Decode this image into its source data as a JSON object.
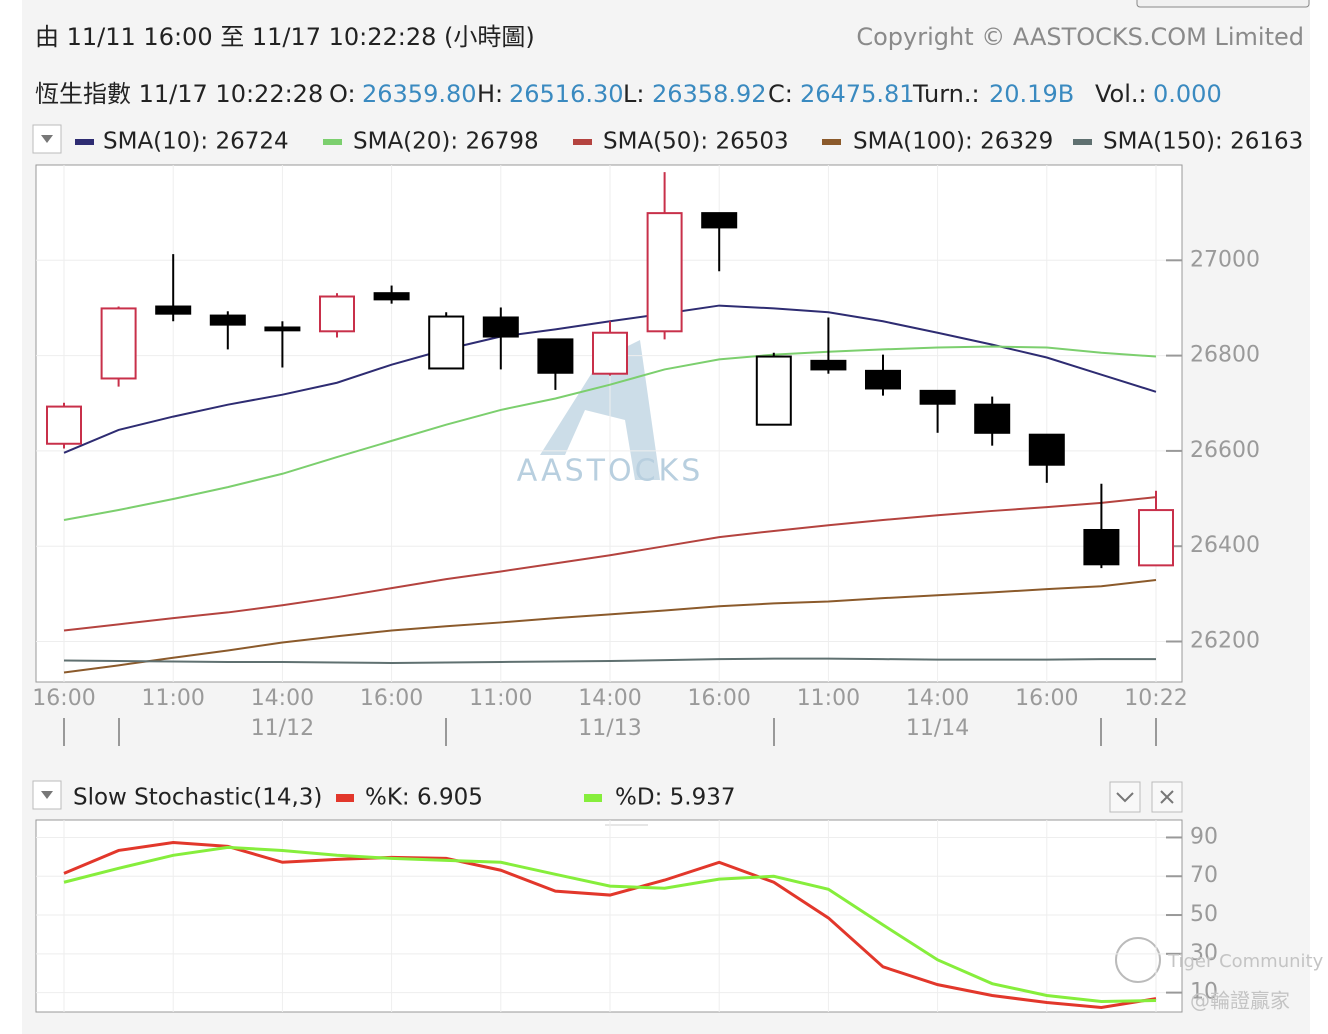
{
  "header": {
    "range": "由  11/11 16:00 至  11/17 10:22:28 (小時圖)",
    "copyright": "Copyright © AASTOCKS.COM Limited",
    "symbol": "恆生指數 11/17 10:22:28",
    "quote": [
      {
        "label": "O:",
        "value": "26359.80"
      },
      {
        "label": "H:",
        "value": "26516.30"
      },
      {
        "label": "L:",
        "value": "26358.92"
      },
      {
        "label": "C:",
        "value": "26475.81"
      },
      {
        "label": "Turn.:",
        "value": "20.19B"
      },
      {
        "label": "Vol.:",
        "value": "0.000"
      }
    ]
  },
  "chart_data": [
    {
      "type": "candlestick",
      "categories": [
        "16:00",
        null,
        "11:00",
        null,
        "14:00",
        null,
        "16:00",
        null,
        "11:00",
        null,
        "14:00",
        null,
        "16:00",
        null,
        "11:00",
        null,
        "14:00",
        null,
        "16:00",
        null,
        "10:22"
      ],
      "date_labels": [
        null,
        null,
        null,
        null,
        "11/12",
        null,
        null,
        null,
        null,
        null,
        "11/13",
        null,
        null,
        null,
        null,
        null,
        "11/14",
        null,
        null,
        null,
        null
      ],
      "open": [
        26615,
        26752,
        26903,
        26884,
        26859,
        26851,
        26931,
        26773,
        26880,
        26834,
        26762,
        26851,
        27099,
        26655,
        26789,
        26768,
        26726,
        26697,
        26634,
        26434,
        26359.8
      ],
      "high": [
        26701,
        26903,
        27013,
        26893,
        26872,
        26931,
        26947,
        26891,
        26901,
        26834,
        26872,
        27185,
        27099,
        26806,
        26880,
        26802,
        26726,
        26714,
        26634,
        26531,
        26516.3
      ],
      "low": [
        26605,
        26735,
        26872,
        26813,
        26775,
        26838,
        26909,
        26773,
        26771,
        26728,
        26758,
        26834,
        26977,
        26655,
        26762,
        26716,
        26638,
        26611,
        26533,
        26354,
        26358.92
      ],
      "close": [
        26693,
        26899,
        26888,
        26865,
        26853,
        26924,
        26918,
        26882,
        26840,
        26764,
        26848,
        27099,
        27069,
        26798,
        26771,
        26731,
        26699,
        26638,
        26571,
        26362,
        26475.81
      ],
      "up_color": "#c8304a",
      "down_color": "#000000",
      "series": [
        {
          "name": "SMA(10): 26724",
          "color": "#2e2c72",
          "values": [
            26596,
            26644,
            26672,
            26697,
            26718,
            26743,
            26781,
            26813,
            26840,
            26855,
            26872,
            26888,
            26905,
            26899,
            26891,
            26872,
            26848,
            26823,
            26796,
            26760,
            26724
          ]
        },
        {
          "name": "SMA(20): 26798",
          "color": "#7ccf6e",
          "values": [
            26455,
            26476,
            26499,
            26524,
            26552,
            26587,
            26621,
            26655,
            26686,
            26710,
            26739,
            26771,
            26792,
            26802,
            26808,
            26813,
            26817,
            26819,
            26817,
            26806,
            26798
          ]
        },
        {
          "name": "SMA(50): 26503",
          "color": "#b4433f",
          "values": [
            26223,
            26236,
            26249,
            26261,
            26276,
            26293,
            26312,
            26331,
            26347,
            26364,
            26381,
            26400,
            26419,
            26432,
            26444,
            26455,
            26465,
            26474,
            26482,
            26491,
            26503
          ]
        },
        {
          "name": "SMA(100): 26329",
          "color": "#8b5a2b",
          "values": [
            26135,
            26150,
            26166,
            26181,
            26198,
            26211,
            26223,
            26232,
            26240,
            26249,
            26257,
            26265,
            26274,
            26280,
            26284,
            26291,
            26297,
            26303,
            26310,
            26316,
            26329
          ]
        },
        {
          "name": "SMA(150): 26163",
          "color": "#5f7070",
          "values": [
            26160,
            26159,
            26158,
            26157,
            26157,
            26156,
            26155,
            26156,
            26157,
            26158,
            26159,
            26161,
            26163,
            26164,
            26164,
            26163,
            26162,
            26162,
            26162,
            26163,
            26163
          ]
        }
      ],
      "ylim": [
        26115,
        27200
      ],
      "yticks": [
        26200,
        26400,
        26600,
        26800,
        27000
      ],
      "grid": true
    },
    {
      "type": "line",
      "title": "Slow Stochastic(14,3)",
      "series": [
        {
          "name": "%K: 6.905",
          "color": "#e2372b",
          "values": [
            71.5,
            83.3,
            87.4,
            85.4,
            77.2,
            78.7,
            79.7,
            79.2,
            73.1,
            62.3,
            60.3,
            68,
            77.2,
            66.9,
            48.5,
            23.3,
            14.1,
            8.5,
            4.9,
            2.3,
            6.905
          ]
        },
        {
          "name": "%D: 5.937",
          "color": "#86ee3c",
          "values": [
            66.9,
            74.1,
            80.8,
            84.9,
            83.3,
            80.8,
            79.2,
            78.2,
            77.2,
            71,
            64.9,
            63.8,
            68.5,
            70,
            63.3,
            44.9,
            26.9,
            14.6,
            8.5,
            5.4,
            5.937
          ]
        }
      ],
      "ylim": [
        0,
        99
      ],
      "yticks": [
        10,
        30,
        50,
        70,
        90
      ],
      "grid": true
    }
  ],
  "watermarks": [
    "AASTOCKS",
    "Tiger Community",
    "@輪證贏家"
  ]
}
